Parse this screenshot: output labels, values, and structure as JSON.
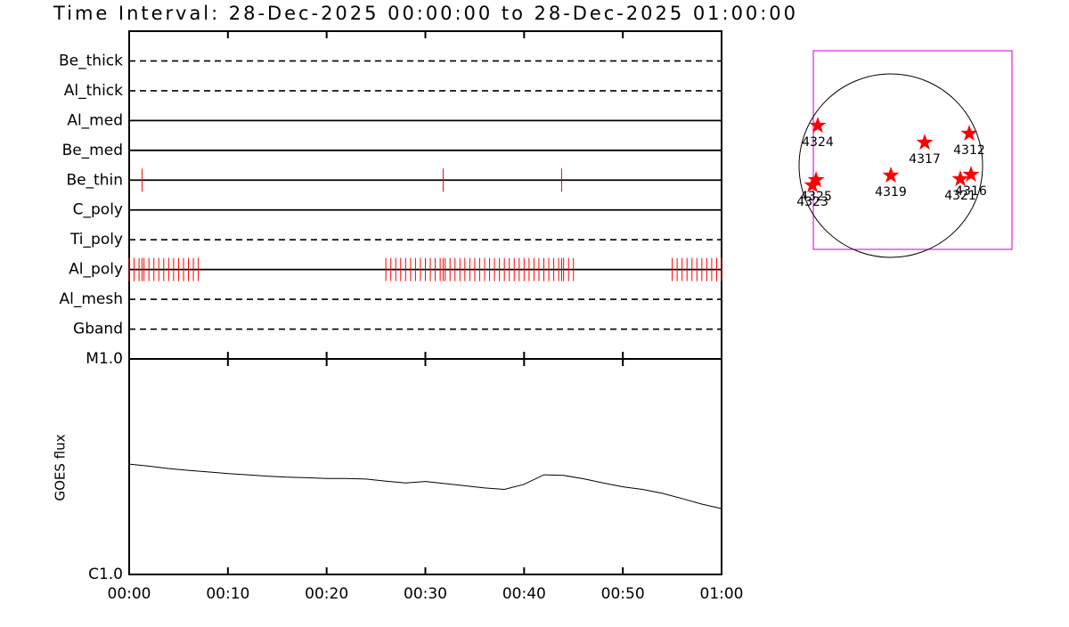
{
  "chart_data": [
    {
      "type": "timeline",
      "title": "Time Interval: 28-Dec-2025 00:00:00 to 28-Dec-2025 01:00:00",
      "categories": [
        "Be_thick",
        "Al_thick",
        "Al_med",
        "Be_med",
        "Be_thin",
        "C_poly",
        "Ti_poly",
        "Al_poly",
        "Al_mesh",
        "Gband"
      ],
      "line_styles": [
        "dashed",
        "dashed",
        "solid",
        "solid",
        "solid",
        "solid",
        "dashed",
        "solid",
        "dashed",
        "dashed"
      ],
      "events": [
        [],
        [],
        [],
        [],
        [
          1.3,
          31.8,
          43.8
        ],
        [],
        [],
        [
          0,
          0.5,
          1,
          1.3,
          1.5,
          2,
          2.5,
          3,
          3.5,
          4,
          4.5,
          5,
          5.5,
          6,
          6.5,
          7,
          26,
          26.5,
          27,
          27.5,
          28,
          28.5,
          29,
          29.5,
          30,
          30.5,
          31,
          31.5,
          31.8,
          32,
          32.5,
          33,
          33.5,
          34,
          34.5,
          35,
          35.5,
          36,
          36.5,
          37,
          37.5,
          38,
          38.5,
          39,
          39.5,
          40,
          40.5,
          41,
          41.5,
          42,
          42.5,
          43,
          43.5,
          43.8,
          44,
          44.5,
          45,
          55,
          55.5,
          56,
          56.5,
          57,
          57.5,
          58,
          58.5,
          59,
          59.5,
          60
        ],
        [],
        []
      ],
      "color": "#ff0000",
      "xlim": [
        0,
        60
      ]
    },
    {
      "type": "line",
      "ylabel": "GOES flux",
      "x": [
        0,
        2,
        4,
        6,
        8,
        10,
        12,
        14,
        16,
        18,
        20,
        22,
        24,
        26,
        28,
        30,
        32,
        34,
        36,
        38,
        40,
        42,
        44,
        46,
        48,
        50,
        52,
        54,
        56,
        58,
        60
      ],
      "values": [
        3.25e-06,
        3.18e-06,
        3.1e-06,
        3.04e-06,
        2.99e-06,
        2.94e-06,
        2.9e-06,
        2.86e-06,
        2.83e-06,
        2.81e-06,
        2.79e-06,
        2.79e-06,
        2.77e-06,
        2.71e-06,
        2.66e-06,
        2.7e-06,
        2.64e-06,
        2.58e-06,
        2.52e-06,
        2.48e-06,
        2.62e-06,
        2.9e-06,
        2.88e-06,
        2.78e-06,
        2.66e-06,
        2.55e-06,
        2.48e-06,
        2.38e-06,
        2.25e-06,
        2.12e-06,
        2.02e-06
      ],
      "color": "#000000",
      "log_y": true,
      "xlim": [
        0,
        60
      ],
      "xticks": [
        {
          "value": 0,
          "label": "00:00"
        },
        {
          "value": 10,
          "label": "00:10"
        },
        {
          "value": 20,
          "label": "00:20"
        },
        {
          "value": 30,
          "label": "00:30"
        },
        {
          "value": 40,
          "label": "00:40"
        },
        {
          "value": 50,
          "label": "00:50"
        },
        {
          "value": 60,
          "label": "01:00"
        }
      ],
      "ylim": [
        1e-06,
        1e-05
      ],
      "yticks": [
        {
          "value": 1e-06,
          "label": "C1.0"
        },
        {
          "value": 1e-05,
          "label": "M1.0"
        }
      ]
    },
    {
      "type": "scatter",
      "labels": [
        "4324",
        "4317",
        "4312",
        "4319",
        "4325",
        "4323",
        "4321",
        "4316"
      ],
      "x": [
        -777,
        360,
        833,
        0,
        -795,
        -833,
        739,
        852
      ],
      "values": [
        426,
        246,
        341,
        -104,
        -152,
        -208,
        -142,
        -95
      ],
      "color": "#ff0000",
      "xlim": [
        -824,
        1288
      ],
      "ylim": [
        -890,
        1222
      ]
    }
  ]
}
